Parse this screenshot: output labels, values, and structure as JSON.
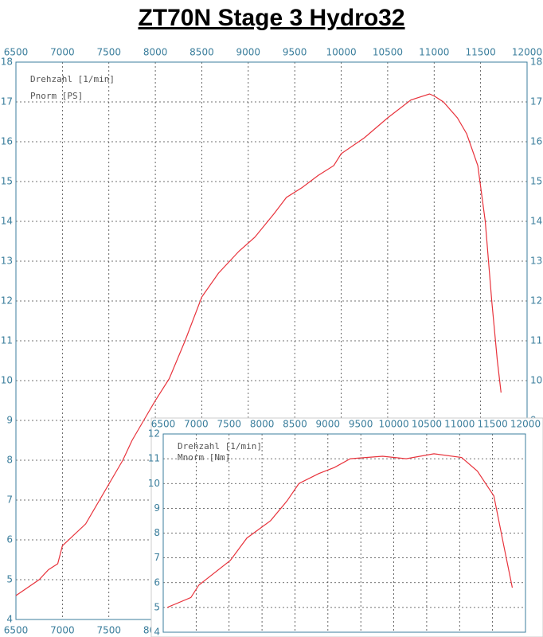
{
  "chart_data": [
    {
      "type": "line",
      "title": "ZT70N  Stage 3  Hydro32",
      "xlabel": "Drehzahl [1/min]",
      "ylabel": "Pnorm [PS]",
      "x": [
        6500,
        6750,
        6850,
        6950,
        7000,
        7250,
        7400,
        7550,
        7650,
        7750,
        7900,
        8000,
        8150,
        8320,
        8500,
        8680,
        8900,
        9070,
        9280,
        9410,
        9580,
        9750,
        9920,
        10000,
        10250,
        10500,
        10750,
        10950,
        11000,
        11100,
        11250,
        11350,
        11470,
        11550,
        11620,
        11680,
        11720
      ],
      "series": [
        {
          "color": "#e8333c",
          "values": [
            4.6,
            5.0,
            5.25,
            5.4,
            5.85,
            6.4,
            7.0,
            7.6,
            8.0,
            8.5,
            9.1,
            9.5,
            10.05,
            11.0,
            12.1,
            12.7,
            13.25,
            13.6,
            14.2,
            14.6,
            14.85,
            15.15,
            15.4,
            15.7,
            16.1,
            16.6,
            17.05,
            17.2,
            17.15,
            17.0,
            16.6,
            16.2,
            15.4,
            14.0,
            12.0,
            10.5,
            9.7
          ]
        }
      ],
      "xlim": [
        6500,
        12000
      ],
      "xticks": [
        6500,
        7000,
        7500,
        8000,
        8500,
        9000,
        9500,
        10000,
        10500,
        11000,
        11500,
        12000
      ],
      "ylim": [
        4,
        18
      ],
      "yticks": [
        4,
        5,
        6,
        7,
        8,
        9,
        10,
        11,
        12,
        13,
        14,
        15,
        16,
        17,
        18
      ],
      "grid": true
    },
    {
      "type": "line",
      "xlabel": "Drehzahl [1/min]",
      "ylabel": "Mnorm [Nm]",
      "x": [
        6560,
        6920,
        7040,
        7520,
        7770,
        8130,
        8380,
        8560,
        8860,
        9100,
        9340,
        9830,
        10190,
        10610,
        11030,
        11270,
        11520,
        11670,
        11800
      ],
      "series": [
        {
          "color": "#e8333c",
          "values": [
            5.0,
            5.4,
            5.9,
            6.9,
            7.8,
            8.5,
            9.3,
            10.0,
            10.4,
            10.65,
            11.0,
            11.1,
            11.0,
            11.2,
            11.05,
            10.5,
            9.5,
            7.5,
            5.8
          ]
        }
      ],
      "xlim": [
        6500,
        12000
      ],
      "xticks": [
        6500,
        7000,
        7500,
        8000,
        8500,
        9000,
        9500,
        10000,
        10500,
        11000,
        11500,
        12000
      ],
      "ylim": [
        4,
        12
      ],
      "yticks": [
        4,
        5,
        6,
        7,
        8,
        9,
        10,
        11,
        12
      ],
      "grid": true
    }
  ]
}
